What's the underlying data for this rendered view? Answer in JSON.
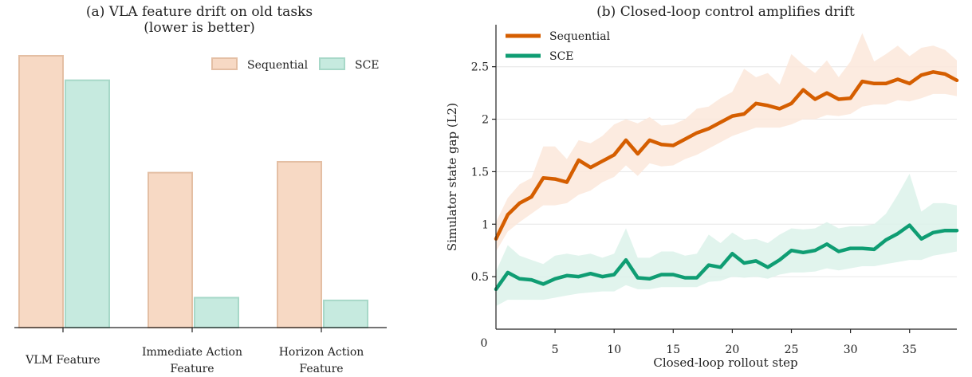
{
  "colors": {
    "sequential_fill": "#f7d9c4",
    "sequential_edge": "#e4bfa4",
    "sce_fill": "#c6eadf",
    "sce_edge": "#a7d8c8",
    "sequential_line": "#d55e00",
    "sce_line": "#0f9d73",
    "sequential_band": "#fce8da",
    "sce_band": "#dcf2ea",
    "grid": "#e6e6e6"
  },
  "chart_data": [
    {
      "type": "bar",
      "title_line1": "(a) VLA feature drift on old tasks",
      "title_line2": "(lower is better)",
      "categories": [
        {
          "line1": "VLM Feature",
          "line2": ""
        },
        {
          "line1": "Immediate Action",
          "line2": "Feature"
        },
        {
          "line1": "Horizon Action",
          "line2": "Feature"
        }
      ],
      "series": [
        {
          "name": "Sequential",
          "values": [
            1.0,
            0.57,
            0.61
          ]
        },
        {
          "name": "SCE",
          "values": [
            0.91,
            0.11,
            0.1
          ]
        }
      ],
      "ylim": [
        0,
        1.0
      ],
      "y_axis_shown": false,
      "legend_position": "top-right"
    },
    {
      "type": "line",
      "title": "(b) Closed-loop control amplifies drift",
      "xlabel": "Closed-loop rollout step",
      "ylabel": "Simulator state gap (L2)",
      "xlim": [
        0,
        39
      ],
      "ylim": [
        0,
        2.9
      ],
      "xticks": [
        "0",
        "5",
        "10",
        "15",
        "20",
        "25",
        "30",
        "35"
      ],
      "yticks": [
        "0.5",
        "1",
        "1.5",
        "2",
        "2.5"
      ],
      "grid": "horizontal",
      "legend_position": "top-left",
      "x": [
        0,
        1,
        2,
        3,
        4,
        5,
        6,
        7,
        8,
        9,
        10,
        11,
        12,
        13,
        14,
        15,
        16,
        17,
        18,
        19,
        20,
        21,
        22,
        23,
        24,
        25,
        26,
        27,
        28,
        29,
        30,
        31,
        32,
        33,
        34,
        35,
        36,
        37,
        38,
        39
      ],
      "series": [
        {
          "name": "Sequential",
          "values": [
            0.86,
            1.09,
            1.2,
            1.26,
            1.44,
            1.43,
            1.4,
            1.61,
            1.54,
            1.6,
            1.66,
            1.8,
            1.67,
            1.8,
            1.76,
            1.75,
            1.81,
            1.87,
            1.91,
            1.97,
            2.03,
            2.05,
            2.15,
            2.13,
            2.1,
            2.15,
            2.28,
            2.19,
            2.25,
            2.19,
            2.2,
            2.36,
            2.34,
            2.34,
            2.38,
            2.34,
            2.42,
            2.45,
            2.43,
            2.37
          ],
          "upper": [
            1.02,
            1.25,
            1.38,
            1.44,
            1.74,
            1.74,
            1.62,
            1.8,
            1.77,
            1.84,
            1.95,
            2.0,
            1.96,
            2.02,
            1.94,
            1.95,
            2.0,
            2.1,
            2.12,
            2.2,
            2.26,
            2.48,
            2.4,
            2.44,
            2.33,
            2.62,
            2.52,
            2.44,
            2.56,
            2.4,
            2.55,
            2.82,
            2.55,
            2.62,
            2.7,
            2.6,
            2.68,
            2.7,
            2.66,
            2.56
          ],
          "lower": [
            0.74,
            0.93,
            1.02,
            1.1,
            1.18,
            1.18,
            1.2,
            1.28,
            1.32,
            1.4,
            1.45,
            1.56,
            1.46,
            1.58,
            1.55,
            1.56,
            1.62,
            1.66,
            1.72,
            1.78,
            1.84,
            1.88,
            1.92,
            1.92,
            1.92,
            1.95,
            2.0,
            2.0,
            2.04,
            2.03,
            2.05,
            2.12,
            2.14,
            2.14,
            2.18,
            2.17,
            2.2,
            2.24,
            2.24,
            2.22
          ]
        },
        {
          "name": "SCE",
          "values": [
            0.38,
            0.54,
            0.48,
            0.47,
            0.43,
            0.48,
            0.51,
            0.5,
            0.53,
            0.5,
            0.52,
            0.66,
            0.49,
            0.48,
            0.52,
            0.52,
            0.49,
            0.49,
            0.61,
            0.59,
            0.72,
            0.63,
            0.65,
            0.59,
            0.66,
            0.75,
            0.73,
            0.75,
            0.81,
            0.74,
            0.77,
            0.77,
            0.76,
            0.85,
            0.91,
            0.99,
            0.86,
            0.92,
            0.94,
            0.94
          ],
          "upper": [
            0.55,
            0.8,
            0.7,
            0.66,
            0.62,
            0.7,
            0.72,
            0.7,
            0.72,
            0.68,
            0.72,
            0.96,
            0.68,
            0.68,
            0.74,
            0.74,
            0.7,
            0.72,
            0.9,
            0.82,
            0.92,
            0.85,
            0.86,
            0.82,
            0.9,
            0.96,
            0.95,
            0.96,
            1.02,
            0.96,
            0.98,
            0.98,
            1.0,
            1.1,
            1.28,
            1.48,
            1.12,
            1.2,
            1.2,
            1.18
          ],
          "lower": [
            0.22,
            0.28,
            0.28,
            0.28,
            0.28,
            0.3,
            0.32,
            0.34,
            0.35,
            0.36,
            0.36,
            0.42,
            0.38,
            0.38,
            0.4,
            0.4,
            0.4,
            0.4,
            0.45,
            0.46,
            0.5,
            0.49,
            0.5,
            0.48,
            0.52,
            0.54,
            0.54,
            0.55,
            0.58,
            0.56,
            0.58,
            0.6,
            0.6,
            0.62,
            0.64,
            0.66,
            0.66,
            0.7,
            0.72,
            0.74
          ]
        }
      ]
    }
  ]
}
